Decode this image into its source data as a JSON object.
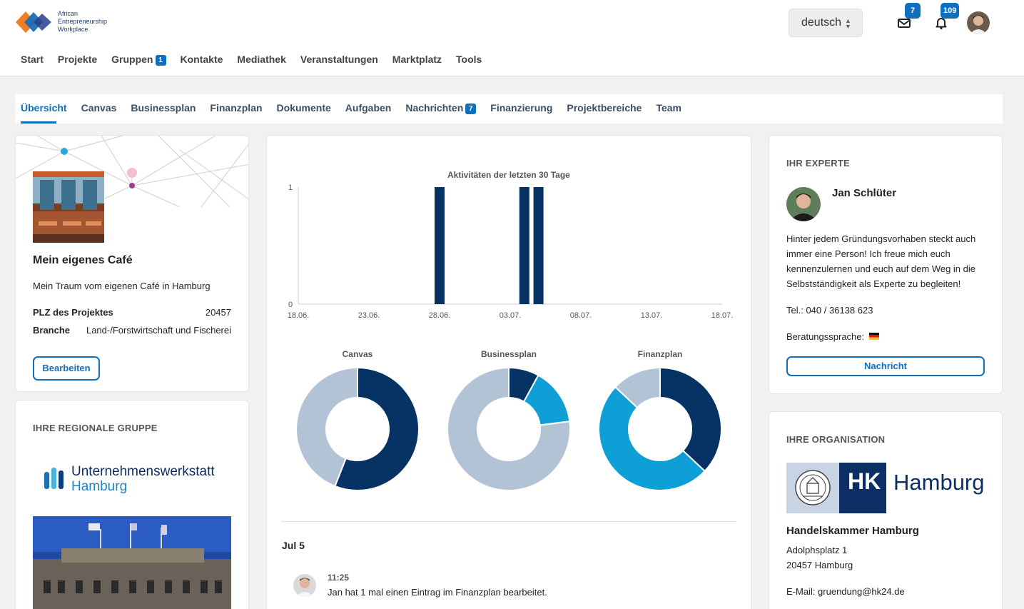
{
  "logo": {
    "line1": "African",
    "line2": "Entrepreneurship",
    "line3": "Workplace"
  },
  "header": {
    "language": "deutsch",
    "mail_count": "7",
    "notification_count": "109"
  },
  "main_nav": [
    {
      "label": "Start"
    },
    {
      "label": "Projekte"
    },
    {
      "label": "Gruppen",
      "badge": "1"
    },
    {
      "label": "Kontakte"
    },
    {
      "label": "Mediathek"
    },
    {
      "label": "Veranstaltungen"
    },
    {
      "label": "Marktplatz"
    },
    {
      "label": "Tools"
    }
  ],
  "sub_nav": [
    {
      "label": "Übersicht",
      "active": true
    },
    {
      "label": "Canvas"
    },
    {
      "label": "Businessplan"
    },
    {
      "label": "Finanzplan"
    },
    {
      "label": "Dokumente"
    },
    {
      "label": "Aufgaben"
    },
    {
      "label": "Nachrichten",
      "badge": "7"
    },
    {
      "label": "Finanzierung"
    },
    {
      "label": "Projektbereiche"
    },
    {
      "label": "Team"
    }
  ],
  "project": {
    "title": "Mein eigenes Café",
    "description": "Mein Traum vom eigenen Café in Hamburg",
    "plz_label": "PLZ des Projektes",
    "plz_value": "20457",
    "branche_label": "Branche",
    "branche_value": "Land-/Forstwirtschaft und Fischerei",
    "edit_button": "Bearbeiten"
  },
  "regional_group": {
    "heading": "IHRE REGIONALE GRUPPE",
    "logo_line1": "Unternehmenswerkstatt",
    "logo_line2": "Hamburg"
  },
  "colors": {
    "navy": "#063363",
    "cyan": "#0e9fd6",
    "grey": "#b3c3d6",
    "accent": "#0f6fbf"
  },
  "chart_data": [
    {
      "type": "bar",
      "title": "Aktivitäten der letzten 30 Tage",
      "x_ticks": [
        "18.06.",
        "23.06.",
        "28.06.",
        "03.07.",
        "08.07.",
        "13.07.",
        "18.07."
      ],
      "y_ticks": [
        "0",
        "1"
      ],
      "ylim": [
        0,
        1
      ],
      "points": [
        {
          "x": "28.06.",
          "value": 1
        },
        {
          "x": "04.07.",
          "value": 1
        },
        {
          "x": "05.07.",
          "value": 1
        }
      ]
    },
    {
      "type": "pie",
      "title": "Canvas",
      "slices": [
        {
          "value": 56,
          "color": "#063363"
        },
        {
          "value": 44,
          "color": "#b3c3d6"
        }
      ]
    },
    {
      "type": "pie",
      "title": "Businessplan",
      "slices": [
        {
          "value": 8,
          "color": "#063363"
        },
        {
          "value": 15,
          "color": "#0e9fd6"
        },
        {
          "value": 77,
          "color": "#b3c3d6"
        }
      ]
    },
    {
      "type": "pie",
      "title": "Finanzplan",
      "slices": [
        {
          "value": 37,
          "color": "#063363"
        },
        {
          "value": 50,
          "color": "#0e9fd6"
        },
        {
          "value": 13,
          "color": "#b3c3d6"
        }
      ]
    }
  ],
  "feed": {
    "date": "Jul 5",
    "time": "11:25",
    "text": "Jan hat 1 mal einen Eintrag im Finanzplan bearbeitet."
  },
  "expert": {
    "heading": "IHR EXPERTE",
    "name": "Jan Schlüter",
    "text": "Hinter jedem Gründungsvorhaben steckt auch immer eine Person! Ich freue mich euch kennenzulernen und euch auf dem Weg in die Selbstständigkeit als Experte zu begleiten!",
    "phone": "Tel.: 040 / 36138 623",
    "language_label": "Beratungssprache:",
    "message_button": "Nachricht"
  },
  "organisation": {
    "heading": "IHRE ORGANISATION",
    "logo_hk": "HK",
    "logo_city": "Hamburg",
    "name": "Handelskammer Hamburg",
    "street": "Adolphsplatz 1",
    "city": "20457 Hamburg",
    "email": "E-Mail: gruendung@hk24.de"
  }
}
